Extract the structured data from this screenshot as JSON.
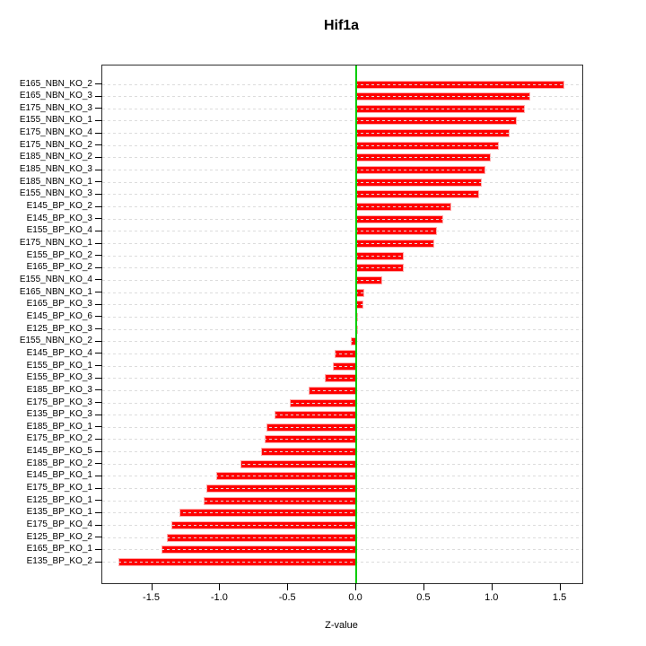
{
  "chart_data": {
    "type": "bar",
    "orientation": "horizontal",
    "title": "Hif1a",
    "xlabel": "Z-value",
    "ylabel": "",
    "legend": "none",
    "grid": "horizontal-dashed",
    "categories": [
      "E165_NBN_KO_2",
      "E165_NBN_KO_3",
      "E175_NBN_KO_3",
      "E155_NBN_KO_1",
      "E175_NBN_KO_4",
      "E175_NBN_KO_2",
      "E185_NBN_KO_2",
      "E185_NBN_KO_3",
      "E185_NBN_KO_1",
      "E155_NBN_KO_3",
      "E145_BP_KO_2",
      "E145_BP_KO_3",
      "E155_BP_KO_4",
      "E175_NBN_KO_1",
      "E155_BP_KO_2",
      "E165_BP_KO_2",
      "E155_NBN_KO_4",
      "E165_NBN_KO_1",
      "E165_BP_KO_3",
      "E145_BP_KO_6",
      "E125_BP_KO_3",
      "E155_NBN_KO_2",
      "E145_BP_KO_4",
      "E155_BP_KO_1",
      "E155_BP_KO_3",
      "E185_BP_KO_3",
      "E175_BP_KO_3",
      "E135_BP_KO_3",
      "E185_BP_KO_1",
      "E175_BP_KO_2",
      "E145_BP_KO_5",
      "E185_BP_KO_2",
      "E145_BP_KO_1",
      "E175_BP_KO_1",
      "E125_BP_KO_1",
      "E135_BP_KO_1",
      "E175_BP_KO_4",
      "E125_BP_KO_2",
      "E165_BP_KO_1",
      "E135_BP_KO_2"
    ],
    "values": [
      1.53,
      1.28,
      1.24,
      1.18,
      1.13,
      1.05,
      0.99,
      0.95,
      0.92,
      0.9,
      0.7,
      0.64,
      0.59,
      0.57,
      0.35,
      0.35,
      0.19,
      0.06,
      0.05,
      0.015,
      0.005,
      -0.04,
      -0.16,
      -0.17,
      -0.23,
      -0.35,
      -0.49,
      -0.6,
      -0.66,
      -0.67,
      -0.7,
      -0.85,
      -1.03,
      -1.1,
      -1.12,
      -1.3,
      -1.36,
      -1.39,
      -1.43,
      -1.75
    ],
    "xlim": [
      -1.866,
      1.661
    ],
    "xticks": [
      -1.5,
      -1.0,
      -0.5,
      0.0,
      0.5,
      1.0,
      1.5
    ],
    "xtick_labels": [
      "-1.5",
      "-1.0",
      "-0.5",
      "0.0",
      "0.5",
      "1.0",
      "1.5"
    ],
    "colors": {
      "bar_fill": "#FF0000",
      "bar_border": "#FFAAAA",
      "zero_line": "#00CC00",
      "gridline": "#DCDCDC",
      "axis": "#2E2E2E",
      "background": "#FFFFFF",
      "text": "#000000"
    }
  }
}
